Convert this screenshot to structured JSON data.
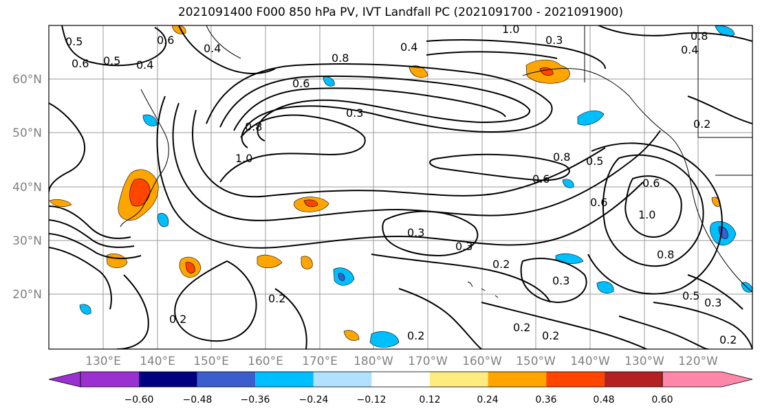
{
  "title": "2021091400 F000 850 hPa PV, IVT Landfall PC (2021091700 - 2021091900)",
  "map": {
    "lat_labels": [
      "60°N",
      "50°N",
      "40°N",
      "30°N",
      "20°N"
    ],
    "lon_labels": [
      "130°E",
      "140°E",
      "150°E",
      "160°E",
      "170°E",
      "180°W",
      "170°W",
      "160°W",
      "150°W",
      "140°W",
      "130°W",
      "120°W"
    ],
    "contour_labels": [
      "0.5",
      "0.6",
      "0.4",
      "0.5",
      "0.4",
      "0.6",
      "1.0",
      "0.3",
      "0.8",
      "0.6",
      "0.4",
      "0.6",
      "0.3",
      "0.8",
      "1.0",
      "0.8",
      "0.5",
      "0.6",
      "0.3",
      "0.3",
      "0.2",
      "0.3",
      "0.2",
      "0.2",
      "0.2",
      "0.2",
      "0.2",
      "0.5",
      "0.3",
      "0.2",
      "1.0",
      "0.8",
      "0.6",
      "0.2",
      "0.4",
      "0.8"
    ]
  },
  "colorbar": {
    "tick_labels": [
      "−0.60",
      "−0.48",
      "−0.36",
      "−0.24",
      "−0.12",
      "0.12",
      "0.24",
      "0.36",
      "0.48",
      "0.60"
    ],
    "colors": [
      "#9b30d0",
      "#000080",
      "#3a5fcd",
      "#00bfff",
      "#b0e2ff",
      "#ffffff",
      "#ffeb80",
      "#ffa500",
      "#ff4500",
      "#b22222",
      "#ff88aa"
    ]
  }
}
